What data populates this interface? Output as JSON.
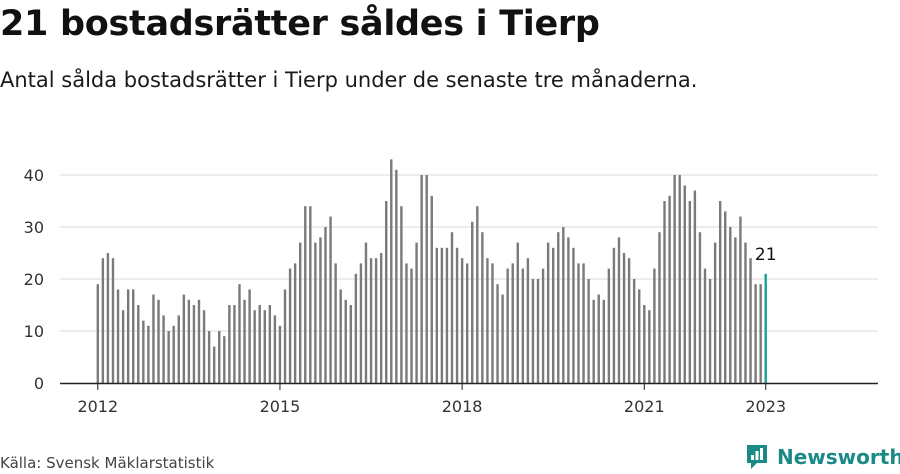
{
  "header": {
    "title": "21 bostadsrätter såldes i Tierp",
    "subtitle": "Antal sålda bostadsrätter i Tierp under de senaste tre månaderna."
  },
  "footer": {
    "source": "Källa: Svensk Mäklarstatistik",
    "brand": "Newsworthy"
  },
  "colors": {
    "bar": "#7a7a7a",
    "highlight": "#14a39a",
    "grid": "#d9d9d9",
    "axis": "#222222",
    "brand": "#1a8a86"
  },
  "chart_data": {
    "type": "bar",
    "start": "2012-01",
    "highlight_last": true,
    "last_value_label": "21",
    "yticks": [
      0,
      10,
      20,
      30,
      40
    ],
    "ylim": [
      0,
      44
    ],
    "xticks": [
      "2012",
      "2015",
      "2018",
      "2021",
      "2023"
    ],
    "grid": true,
    "values": [
      19,
      24,
      25,
      24,
      18,
      14,
      18,
      18,
      15,
      12,
      11,
      17,
      16,
      13,
      10,
      11,
      13,
      17,
      16,
      15,
      16,
      14,
      10,
      7,
      10,
      9,
      15,
      15,
      19,
      16,
      18,
      14,
      15,
      14,
      15,
      13,
      11,
      18,
      22,
      23,
      27,
      34,
      34,
      27,
      28,
      30,
      32,
      23,
      18,
      16,
      15,
      21,
      23,
      27,
      24,
      24,
      25,
      35,
      43,
      41,
      34,
      23,
      22,
      27,
      40,
      40,
      36,
      26,
      26,
      26,
      29,
      26,
      24,
      23,
      31,
      34,
      29,
      24,
      23,
      19,
      17,
      22,
      23,
      27,
      22,
      24,
      20,
      20,
      22,
      27,
      26,
      29,
      30,
      28,
      26,
      23,
      23,
      20,
      16,
      17,
      16,
      22,
      26,
      28,
      25,
      24,
      20,
      18,
      15,
      14,
      22,
      29,
      35,
      36,
      40,
      40,
      38,
      35,
      37,
      29,
      22,
      20,
      27,
      35,
      33,
      30,
      28,
      32,
      27,
      24,
      19,
      19,
      21
    ]
  }
}
